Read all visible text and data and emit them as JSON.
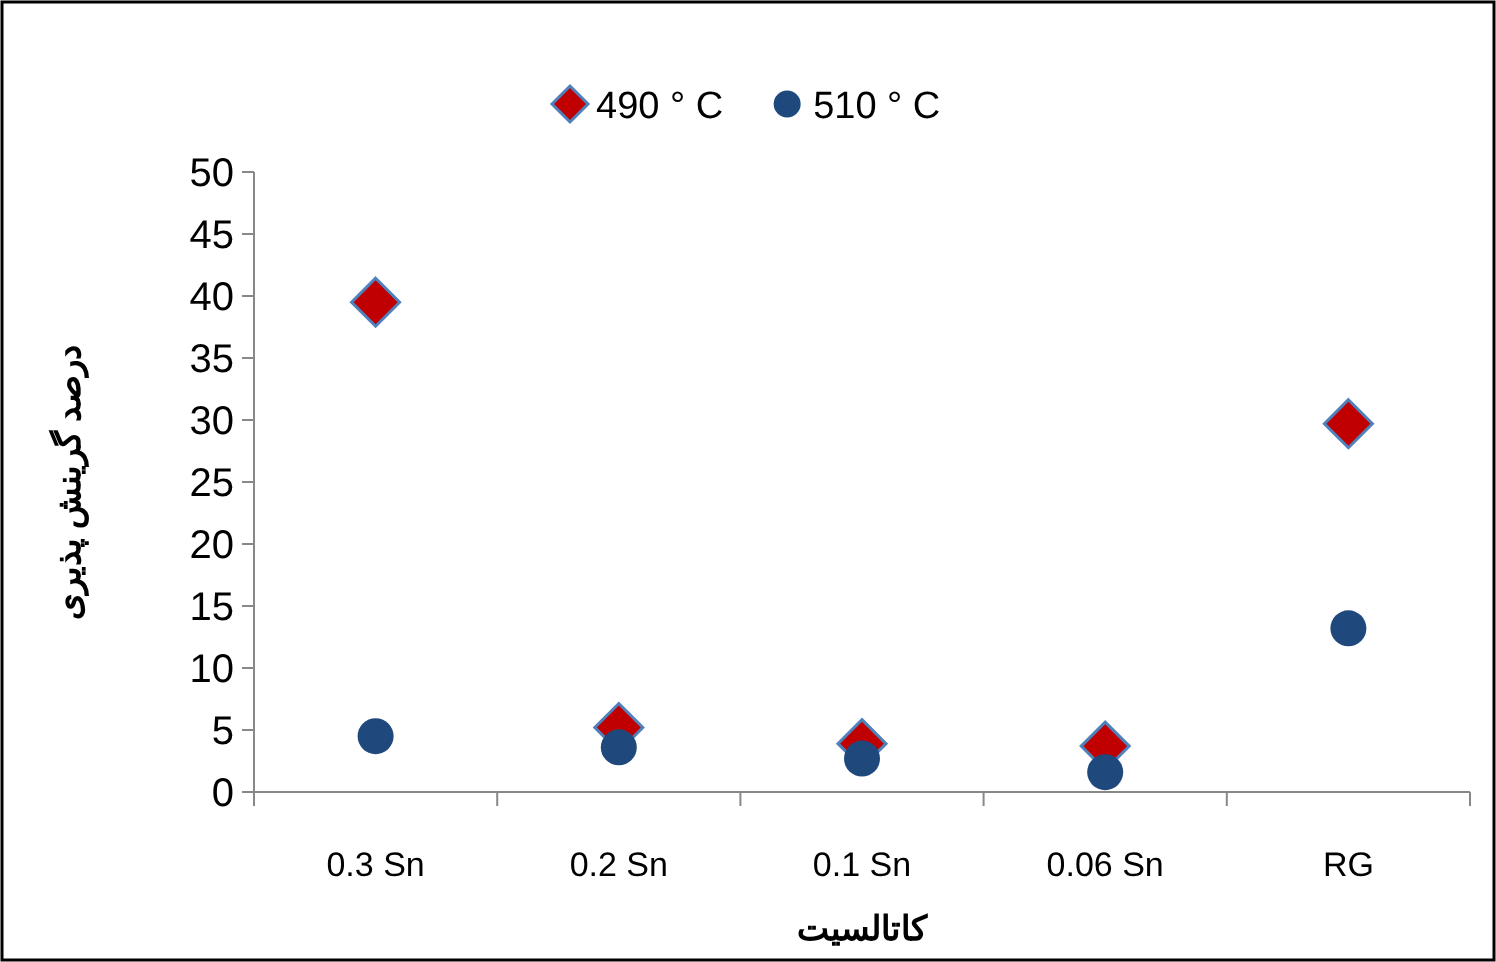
{
  "chart_data": {
    "type": "scatter",
    "xlabel": "کاتالسیت",
    "ylabel": "درصد گرینش پذیری",
    "categories": [
      "0.3 Sn",
      "0.2 Sn",
      "0.1 Sn",
      "0.06 Sn",
      "RG"
    ],
    "series": [
      {
        "name": "490 ° C",
        "color": "#c00000",
        "marker": "diamond",
        "values": [
          39.5,
          5.2,
          3.9,
          3.7,
          29.7
        ]
      },
      {
        "name": "510 ° C",
        "color": "#1f497d",
        "marker": "circle",
        "values": [
          4.5,
          3.6,
          2.7,
          1.6,
          13.2
        ]
      }
    ],
    "ylim": [
      0,
      50
    ],
    "yticks": [
      0,
      5,
      10,
      15,
      20,
      25,
      30,
      35,
      40,
      45,
      50
    ],
    "grid": false,
    "legend": "top"
  }
}
